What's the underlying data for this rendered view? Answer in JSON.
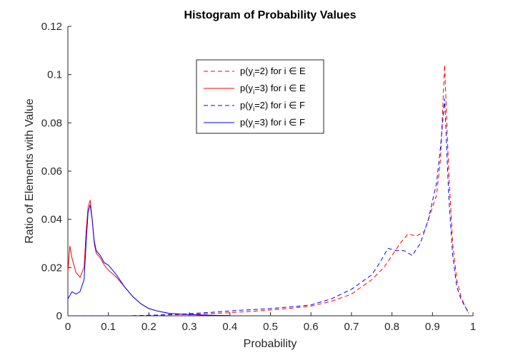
{
  "chart_data": {
    "type": "line",
    "title": "Histogram of Probability Values",
    "xlabel": "Probability",
    "ylabel": "Ratio of Elements with Value",
    "xlim": [
      0,
      1
    ],
    "ylim": [
      0,
      0.12
    ],
    "xticks": [
      "0",
      "0.1",
      "0.2",
      "0.3",
      "0.4",
      "0.5",
      "0.6",
      "0.7",
      "0.8",
      "0.9",
      "1"
    ],
    "yticks": [
      "0",
      "0.02",
      "0.04",
      "0.06",
      "0.08",
      "0.1",
      "0.12"
    ],
    "grid": false,
    "legend_position": "top-center",
    "series": [
      {
        "name": "p(y_i=2) for i ∈ E",
        "color": "#ff0000",
        "style": "dashed",
        "x": [
          0,
          0.05,
          0.1,
          0.15,
          0.2,
          0.25,
          0.3,
          0.35,
          0.4,
          0.45,
          0.5,
          0.55,
          0.6,
          0.65,
          0.7,
          0.75,
          0.78,
          0.8,
          0.82,
          0.84,
          0.86,
          0.88,
          0.9,
          0.91,
          0.92,
          0.93,
          0.94,
          0.95,
          0.96,
          0.97,
          0.98,
          0.99
        ],
        "y": [
          0,
          0,
          0,
          0,
          0.0002,
          0.0004,
          0.0006,
          0.0009,
          0.0013,
          0.0018,
          0.0024,
          0.0031,
          0.004,
          0.006,
          0.009,
          0.015,
          0.02,
          0.025,
          0.03,
          0.034,
          0.033,
          0.035,
          0.045,
          0.05,
          0.065,
          0.104,
          0.06,
          0.03,
          0.015,
          0.008,
          0.004,
          0.001
        ]
      },
      {
        "name": "p(y_i=3) for i ∈ E",
        "color": "#ff0000",
        "style": "solid",
        "x": [
          0,
          0.005,
          0.01,
          0.02,
          0.03,
          0.04,
          0.045,
          0.05,
          0.055,
          0.06,
          0.065,
          0.07,
          0.08,
          0.09,
          0.1,
          0.12,
          0.14,
          0.16,
          0.18,
          0.2,
          0.22,
          0.25,
          0.3,
          0.35,
          0.4
        ],
        "y": [
          0.018,
          0.029,
          0.024,
          0.018,
          0.016,
          0.02,
          0.035,
          0.045,
          0.048,
          0.04,
          0.03,
          0.026,
          0.024,
          0.021,
          0.019,
          0.016,
          0.012,
          0.008,
          0.005,
          0.003,
          0.002,
          0.001,
          0.0005,
          0.0002,
          0.0001
        ]
      },
      {
        "name": "p(y_i=2) for i ∈ F",
        "color": "#0000ff",
        "style": "dashed",
        "x": [
          0,
          0.05,
          0.1,
          0.15,
          0.2,
          0.25,
          0.3,
          0.35,
          0.4,
          0.45,
          0.5,
          0.55,
          0.6,
          0.65,
          0.7,
          0.75,
          0.77,
          0.79,
          0.81,
          0.83,
          0.85,
          0.87,
          0.89,
          0.91,
          0.92,
          0.93,
          0.94,
          0.95,
          0.96,
          0.97,
          0.98,
          0.99
        ],
        "y": [
          0,
          0,
          0,
          0,
          0.0002,
          0.0005,
          0.0009,
          0.0014,
          0.002,
          0.0025,
          0.003,
          0.0037,
          0.0045,
          0.007,
          0.011,
          0.017,
          0.022,
          0.028,
          0.027,
          0.027,
          0.025,
          0.03,
          0.04,
          0.055,
          0.07,
          0.09,
          0.05,
          0.025,
          0.012,
          0.007,
          0.004,
          0.001
        ]
      },
      {
        "name": "p(y_i=3) for i ∈ F",
        "color": "#0000ff",
        "style": "solid",
        "x": [
          0,
          0.01,
          0.02,
          0.03,
          0.04,
          0.045,
          0.05,
          0.055,
          0.06,
          0.065,
          0.07,
          0.08,
          0.09,
          0.1,
          0.12,
          0.14,
          0.16,
          0.18,
          0.2,
          0.22,
          0.25,
          0.3,
          0.35,
          0.4
        ],
        "y": [
          0.007,
          0.01,
          0.009,
          0.01,
          0.015,
          0.03,
          0.043,
          0.046,
          0.04,
          0.031,
          0.027,
          0.025,
          0.022,
          0.021,
          0.017,
          0.012,
          0.008,
          0.005,
          0.003,
          0.002,
          0.001,
          0.0005,
          0.0002,
          0.0001
        ]
      }
    ],
    "legend": [
      {
        "label": "p(y",
        "sub": "i",
        "rest": "=2) for i ∈ E"
      },
      {
        "label": "p(y",
        "sub": "i",
        "rest": "=3) for i ∈ E"
      },
      {
        "label": "p(y",
        "sub": "i",
        "rest": "=2) for i ∈ F"
      },
      {
        "label": "p(y",
        "sub": "i",
        "rest": "=3) for i ∈ F"
      }
    ]
  }
}
